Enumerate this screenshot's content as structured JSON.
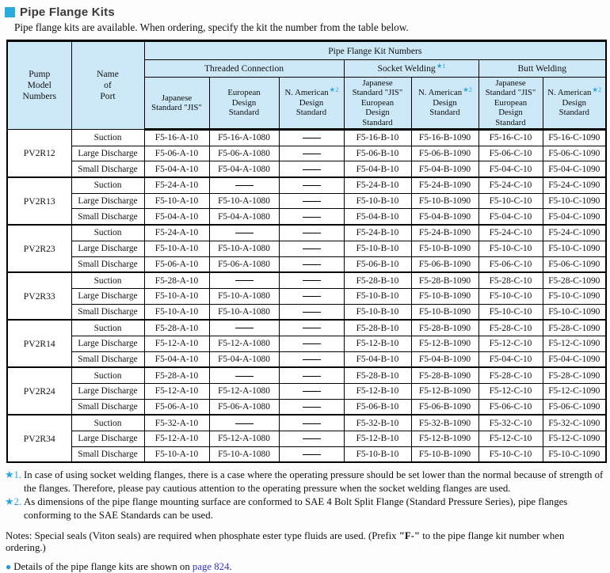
{
  "page": {
    "title": "Pipe Flange Kits",
    "subtitle": "Pipe flange kits are available.  When ordering, specify the kit the number from the table below."
  },
  "table": {
    "kit_numbers_title": "Pipe Flange Kit Numbers",
    "pump_col": "Pump\nModel\nNumbers",
    "port_col": "Name\nof\nPort",
    "group_headers": [
      {
        "label": "Threaded Connection",
        "star": ""
      },
      {
        "label": "Socket Welding",
        "star": "★1"
      },
      {
        "label": "Butt Welding",
        "star": ""
      }
    ],
    "sub_headers": [
      {
        "text": "Japanese\nStandard \"JIS\""
      },
      {
        "text": "European\nDesign\nStandard"
      },
      {
        "line1": "N. American",
        "star": "★2",
        "rest": "\nDesign\nStandard"
      },
      {
        "text": "Japanese\nStandard \"JIS\"\nEuropean\nDesign\nStandard"
      },
      {
        "line1": "N. American",
        "star": "★2",
        "rest": "\nDesign\nStandard"
      },
      {
        "text": "Japanese\nStandard \"JIS\"\nEuropean\nDesign\nStandard"
      },
      {
        "line1": "N. American",
        "star": "★2",
        "rest": "\nDesign\nStandard"
      }
    ],
    "groups": [
      {
        "model": "PV2R12",
        "rows": [
          {
            "port": "Suction",
            "values": [
              "F5-16-A-10",
              "F5-16-A-1080",
              "—",
              "F5-16-B-10",
              "F5-16-B-1090",
              "F5-16-C-10",
              "F5-16-C-1090"
            ]
          },
          {
            "port": "Large Discharge",
            "values": [
              "F5-06-A-10",
              "F5-06-A-1080",
              "—",
              "F5-06-B-10",
              "F5-06-B-1090",
              "F5-06-C-10",
              "F5-06-C-1090"
            ]
          },
          {
            "port": "Small Discharge",
            "values": [
              "F5-04-A-10",
              "F5-04-A-1080",
              "—",
              "F5-04-B-10",
              "F5-04-B-1090",
              "F5-04-C-10",
              "F5-04-C-1090"
            ]
          }
        ]
      },
      {
        "model": "PV2R13",
        "rows": [
          {
            "port": "Suction",
            "values": [
              "F5-24-A-10",
              "—",
              "—",
              "F5-24-B-10",
              "F5-24-B-1090",
              "F5-24-C-10",
              "F5-24-C-1090"
            ]
          },
          {
            "port": "Large Discharge",
            "values": [
              "F5-10-A-10",
              "F5-10-A-1080",
              "—",
              "F5-10-B-10",
              "F5-10-B-1090",
              "F5-10-C-10",
              "F5-10-C-1090"
            ]
          },
          {
            "port": "Small Discharge",
            "values": [
              "F5-04-A-10",
              "F5-04-A-1080",
              "—",
              "F5-04-B-10",
              "F5-04-B-1090",
              "F5-04-C-10",
              "F5-04-C-1090"
            ]
          }
        ]
      },
      {
        "model": "PV2R23",
        "rows": [
          {
            "port": "Suction",
            "values": [
              "F5-24-A-10",
              "—",
              "—",
              "F5-24-B-10",
              "F5-24-B-1090",
              "F5-24-C-10",
              "F5-24-C-1090"
            ]
          },
          {
            "port": "Large Discharge",
            "values": [
              "F5-10-A-10",
              "F5-10-A-1080",
              "—",
              "F5-10-B-10",
              "F5-10-B-1090",
              "F5-10-C-10",
              "F5-10-C-1090"
            ]
          },
          {
            "port": "Small Discharge",
            "values": [
              "F5-06-A-10",
              "F5-06-A-1080",
              "—",
              "F5-06-B-10",
              "F5-06-B-1090",
              "F5-06-C-10",
              "F5-06-C-1090"
            ]
          }
        ]
      },
      {
        "model": "PV2R33",
        "rows": [
          {
            "port": "Suction",
            "values": [
              "F5-28-A-10",
              "—",
              "—",
              "F5-28-B-10",
              "F5-28-B-1090",
              "F5-28-C-10",
              "F5-28-C-1090"
            ]
          },
          {
            "port": "Large Discharge",
            "values": [
              "F5-10-A-10",
              "F5-10-A-1080",
              "—",
              "F5-10-B-10",
              "F5-10-B-1090",
              "F5-10-C-10",
              "F5-10-C-1090"
            ]
          },
          {
            "port": "Small Discharge",
            "values": [
              "F5-10-A-10",
              "F5-10-A-1080",
              "—",
              "F5-10-B-10",
              "F5-10-B-1090",
              "F5-10-C-10",
              "F5-10-C-1090"
            ]
          }
        ]
      },
      {
        "model": "PV2R14",
        "rows": [
          {
            "port": "Suction",
            "values": [
              "F5-28-A-10",
              "—",
              "—",
              "F5-28-B-10",
              "F5-28-B-1090",
              "F5-28-C-10",
              "F5-28-C-1090"
            ]
          },
          {
            "port": "Large Discharge",
            "values": [
              "F5-12-A-10",
              "F5-12-A-1080",
              "—",
              "F5-12-B-10",
              "F5-12-B-1090",
              "F5-12-C-10",
              "F5-12-C-1090"
            ]
          },
          {
            "port": "Small Discharge",
            "values": [
              "F5-04-A-10",
              "F5-04-A-1080",
              "—",
              "F5-04-B-10",
              "F5-04-B-1090",
              "F5-04-C-10",
              "F5-04-C-1090"
            ]
          }
        ]
      },
      {
        "model": "PV2R24",
        "rows": [
          {
            "port": "Suction",
            "values": [
              "F5-28-A-10",
              "—",
              "—",
              "F5-28-B-10",
              "F5-28-B-1090",
              "F5-28-C-10",
              "F5-28-C-1090"
            ]
          },
          {
            "port": "Large Discharge",
            "values": [
              "F5-12-A-10",
              "F5-12-A-1080",
              "—",
              "F5-12-B-10",
              "F5-12-B-1090",
              "F5-12-C-10",
              "F5-12-C-1090"
            ]
          },
          {
            "port": "Small Discharge",
            "values": [
              "F5-06-A-10",
              "F5-06-A-1080",
              "—",
              "F5-06-B-10",
              "F5-06-B-1090",
              "F5-06-C-10",
              "F5-06-C-1090"
            ]
          }
        ]
      },
      {
        "model": "PV2R34",
        "rows": [
          {
            "port": "Suction",
            "values": [
              "F5-32-A-10",
              "—",
              "—",
              "F5-32-B-10",
              "F5-32-B-1090",
              "F5-32-C-10",
              "F5-32-C-1090"
            ]
          },
          {
            "port": "Large Discharge",
            "values": [
              "F5-12-A-10",
              "F5-12-A-1080",
              "—",
              "F5-12-B-10",
              "F5-12-B-1090",
              "F5-12-C-10",
              "F5-12-C-1090"
            ]
          },
          {
            "port": "Small Discharge",
            "values": [
              "F5-10-A-10",
              "F5-10-A-1080",
              "—",
              "F5-10-B-10",
              "F5-10-B-1090",
              "F5-10-C-10",
              "F5-10-C-1090"
            ]
          }
        ]
      }
    ]
  },
  "footnotes": [
    {
      "marker": "★1.",
      "text": "In case of using socket welding flanges, there is a case where the operating pressure should be set lower than the normal because of strength of the flanges. Therefore, please pay cautious attention to the operating pressure when the socket welding flanges are used."
    },
    {
      "marker": "★2.",
      "text": "As dimensions of the pipe flange mounting surface are conformed to SAE 4 Bolt Split Flange (Standard Pressure Series), pipe flanges conforming to the SAE Standards can be used."
    }
  ],
  "notes": {
    "pre": "Notes: Special seals (Viton seals) are required when phosphate ester type fluids are used. (Prefix ",
    "bold": "\"F-\"",
    "post": " to the pipe flange kit number when ordering.)"
  },
  "details_line": {
    "bullet": "●",
    "pre": "Details of the pipe flange kits are shown on ",
    "link": "page 824",
    "post": "."
  },
  "colors": {
    "accent_blue": "#29abe2",
    "header_bg": "#cde9f8",
    "star_blue": "#2aa5e0",
    "link_blue": "#3333cc"
  }
}
